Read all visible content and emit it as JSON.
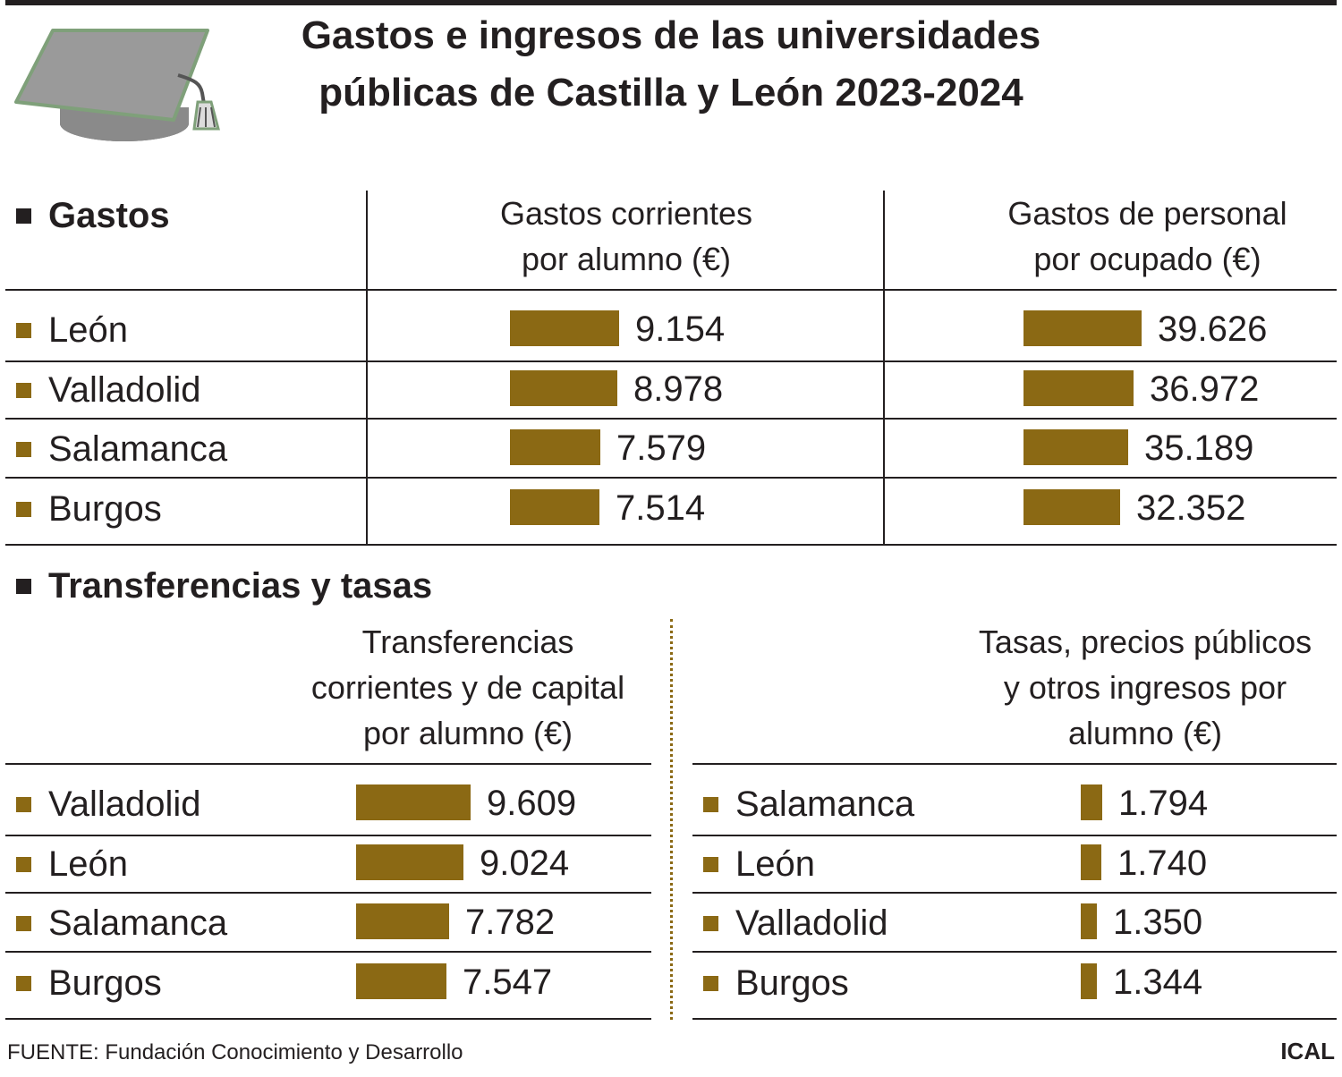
{
  "title_line1": "Gastos e ingresos de las universidades",
  "title_line2": "públicas de Castilla y León 2023-2024",
  "icon": "graduation-cap",
  "colors": {
    "bar": "#8b6914",
    "text": "#231f20"
  },
  "gastos": {
    "heading": "Gastos",
    "col1_line1": "Gastos corrientes",
    "col1_line2": "por alumno (€)",
    "col2_line1": "Gastos de personal",
    "col2_line2": "por ocupado (€)"
  },
  "transferencias": {
    "heading": "Transferencias y tasas",
    "col1_line1": "Transferencias",
    "col1_line2": "corrientes y de capital",
    "col1_line3": "por alumno (€)",
    "col2_line1": "Tasas, precios públicos",
    "col2_line2": "y otros ingresos por",
    "col2_line3": "alumno (€)"
  },
  "source": "FUENTE: Fundación Conocimiento y Desarrollo",
  "credit": "ICAL",
  "chart_data": [
    {
      "type": "bar",
      "title": "Gastos corrientes por alumno (€)",
      "categories": [
        "León",
        "Valladolid",
        "Salamanca",
        "Burgos"
      ],
      "values": [
        9154,
        8978,
        7579,
        7514
      ],
      "value_labels": [
        "9.154",
        "8.978",
        "7.579",
        "7.514"
      ]
    },
    {
      "type": "bar",
      "title": "Gastos de personal por ocupado (€)",
      "categories": [
        "León",
        "Valladolid",
        "Salamanca",
        "Burgos"
      ],
      "values": [
        39626,
        36972,
        35189,
        32352
      ],
      "value_labels": [
        "39.626",
        "36.972",
        "35.189",
        "32.352"
      ]
    },
    {
      "type": "bar",
      "title": "Transferencias corrientes y de capital por alumno (€)",
      "categories": [
        "Valladolid",
        "León",
        "Salamanca",
        "Burgos"
      ],
      "values": [
        9609,
        9024,
        7782,
        7547
      ],
      "value_labels": [
        "9.609",
        "9.024",
        "7.782",
        "7.547"
      ]
    },
    {
      "type": "bar",
      "title": "Tasas, precios públicos y otros ingresos por alumno (€)",
      "categories": [
        "Salamanca",
        "León",
        "Valladolid",
        "Burgos"
      ],
      "values": [
        1794,
        1740,
        1350,
        1344
      ],
      "value_labels": [
        "1.794",
        "1.740",
        "1.350",
        "1.344"
      ]
    }
  ]
}
